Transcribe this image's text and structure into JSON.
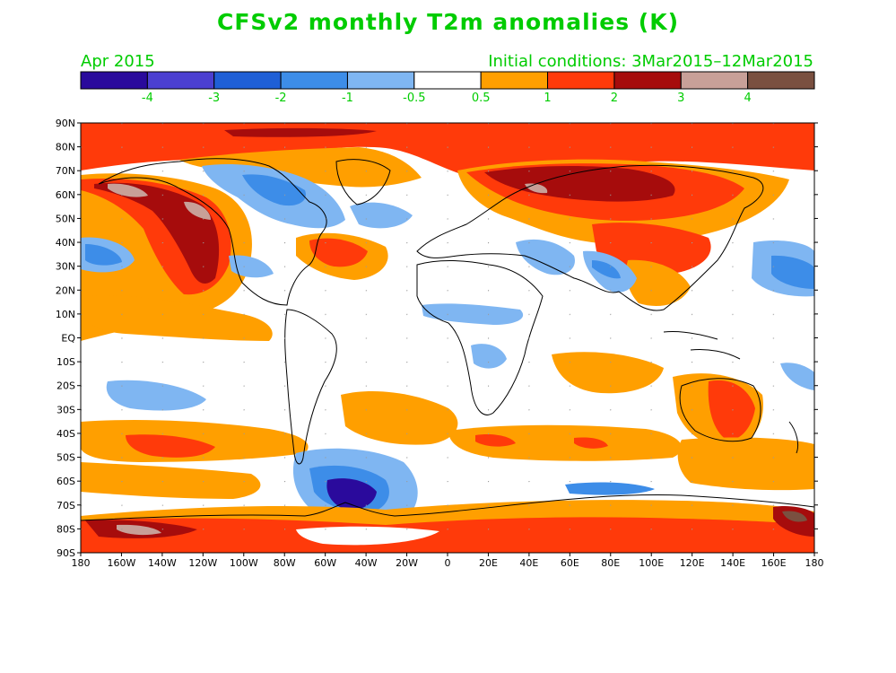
{
  "title": "CFSv2 monthly T2m anomalies (K)",
  "valid_month": "Apr 2015",
  "initial_conditions": "Initial conditions: 3Mar2015–12Mar2015",
  "colorbar": {
    "labels": [
      "-4",
      "-3",
      "-2",
      "-1",
      "-0.5",
      "0.5",
      "1",
      "2",
      "3",
      "4"
    ],
    "colors": [
      "#2a0a9c",
      "#4b3fd0",
      "#1f5fd6",
      "#3d8de8",
      "#7fb6f2",
      "#ffffff",
      "#ff9f00",
      "#ff3a0a",
      "#a60c0c",
      "#c8a098",
      "#7a5040"
    ]
  },
  "axes": {
    "lat_labels": [
      "90N",
      "80N",
      "70N",
      "60N",
      "50N",
      "40N",
      "30N",
      "20N",
      "10N",
      "EQ",
      "10S",
      "20S",
      "30S",
      "40S",
      "50S",
      "60S",
      "70S",
      "80S",
      "90S"
    ],
    "lon_labels": [
      "180",
      "160W",
      "140W",
      "120W",
      "100W",
      "80W",
      "60W",
      "40W",
      "20W",
      "0",
      "20E",
      "40E",
      "60E",
      "80E",
      "100E",
      "120E",
      "140E",
      "160E",
      "180"
    ]
  },
  "colors": {
    "text": "#00cc00",
    "warm1": "#ff9f00",
    "warm2": "#ff3a0a",
    "warm3": "#a60c0c",
    "warm4": "#c8a098",
    "warm5": "#7a5040",
    "cool1": "#7fb6f2",
    "cool2": "#3d8de8",
    "cool4": "#2a0a9c"
  }
}
